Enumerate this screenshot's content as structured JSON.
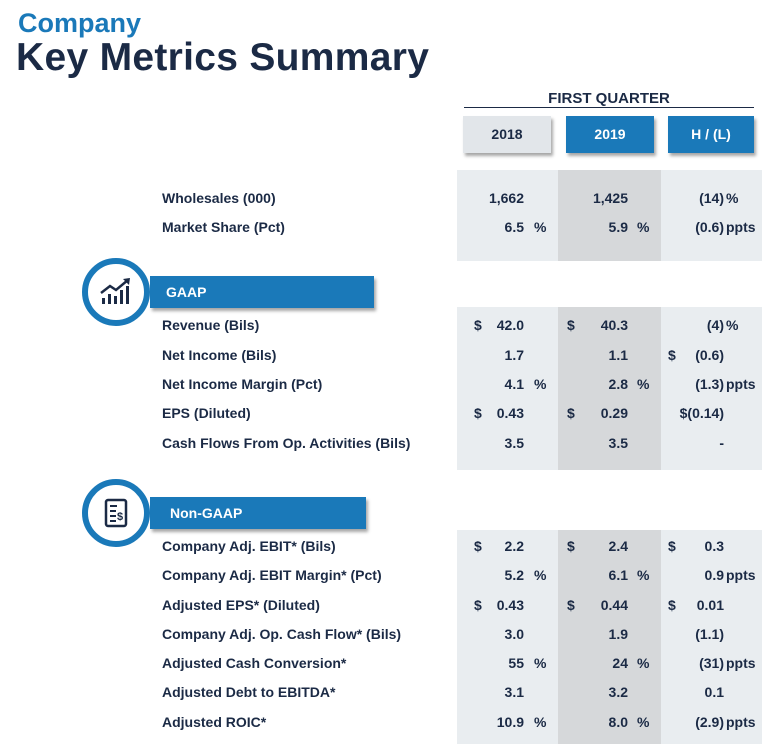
{
  "header": {
    "company": "Company",
    "title": "Key Metrics Summary",
    "period": "FIRST QUARTER"
  },
  "columns": [
    "2018",
    "2019",
    "H / (L)"
  ],
  "sections": {
    "summary": {
      "rows": [
        {
          "label": "Wholesales (000)",
          "cells": [
            "",
            "1,662",
            "",
            "",
            "1,425",
            "",
            "",
            "(14)",
            "%"
          ]
        },
        {
          "label": "Market Share (Pct)",
          "cells": [
            "",
            "6.5",
            "%",
            "",
            "5.9",
            "%",
            "",
            "(0.6)",
            "ppts"
          ]
        }
      ]
    },
    "gaap": {
      "title": "GAAP",
      "rows": [
        {
          "label": "Revenue (Bils)",
          "cells": [
            "$",
            "42.0",
            "",
            "$",
            "40.3",
            "",
            "",
            "(4)",
            "%"
          ]
        },
        {
          "label": "Net Income (Bils)",
          "cells": [
            "",
            "1.7",
            "",
            "",
            "1.1",
            "",
            "$",
            "(0.6)",
            ""
          ]
        },
        {
          "label": "Net Income Margin (Pct)",
          "cells": [
            "",
            "4.1",
            "%",
            "",
            "2.8",
            "%",
            "",
            "(1.3)",
            "ppts"
          ]
        },
        {
          "label": "EPS (Diluted)",
          "cells": [
            "$",
            "0.43",
            "",
            "$",
            "0.29",
            "",
            "",
            "$(0.14)",
            ""
          ]
        },
        {
          "label": "Cash Flows From Op. Activities (Bils)",
          "cells": [
            "",
            "3.5",
            "",
            "",
            "3.5",
            "",
            "",
            "-",
            ""
          ]
        }
      ]
    },
    "non_gaap": {
      "title": "Non-GAAP",
      "rows": [
        {
          "label": "Company Adj. EBIT* (Bils)",
          "cells": [
            "$",
            "2.2",
            "",
            "$",
            "2.4",
            "",
            "$",
            "0.3",
            ""
          ]
        },
        {
          "label": "Company Adj. EBIT Margin* (Pct)",
          "cells": [
            "",
            "5.2",
            "%",
            "",
            "6.1",
            "%",
            "",
            "0.9",
            "ppts"
          ]
        },
        {
          "label": "Adjusted EPS* (Diluted)",
          "cells": [
            "$",
            "0.43",
            "",
            "$",
            "0.44",
            "",
            "$",
            "0.01",
            ""
          ]
        },
        {
          "label": "Company Adj. Op. Cash Flow* (Bils)",
          "cells": [
            "",
            "3.0",
            "",
            "",
            "1.9",
            "",
            "",
            "(1.1)",
            ""
          ]
        },
        {
          "label": "Adjusted Cash Conversion*",
          "cells": [
            "",
            "55",
            "%",
            "",
            "24",
            "%",
            "",
            "(31)",
            "ppts"
          ]
        },
        {
          "label": "Adjusted Debt to EBITDA*",
          "cells": [
            "",
            "3.1",
            "",
            "",
            "3.2",
            "",
            "",
            "0.1",
            ""
          ]
        },
        {
          "label": "Adjusted ROIC*",
          "cells": [
            "",
            "10.9",
            "%",
            "",
            "8.0",
            "%",
            "",
            "(2.9)",
            "ppts"
          ]
        }
      ]
    }
  },
  "icons": {
    "gaap": "line-chart-growth-icon",
    "non_gaap": "document-dollar-icon"
  },
  "colors": {
    "brand_blue": "#1a79b9",
    "navy": "#1b2a45"
  }
}
